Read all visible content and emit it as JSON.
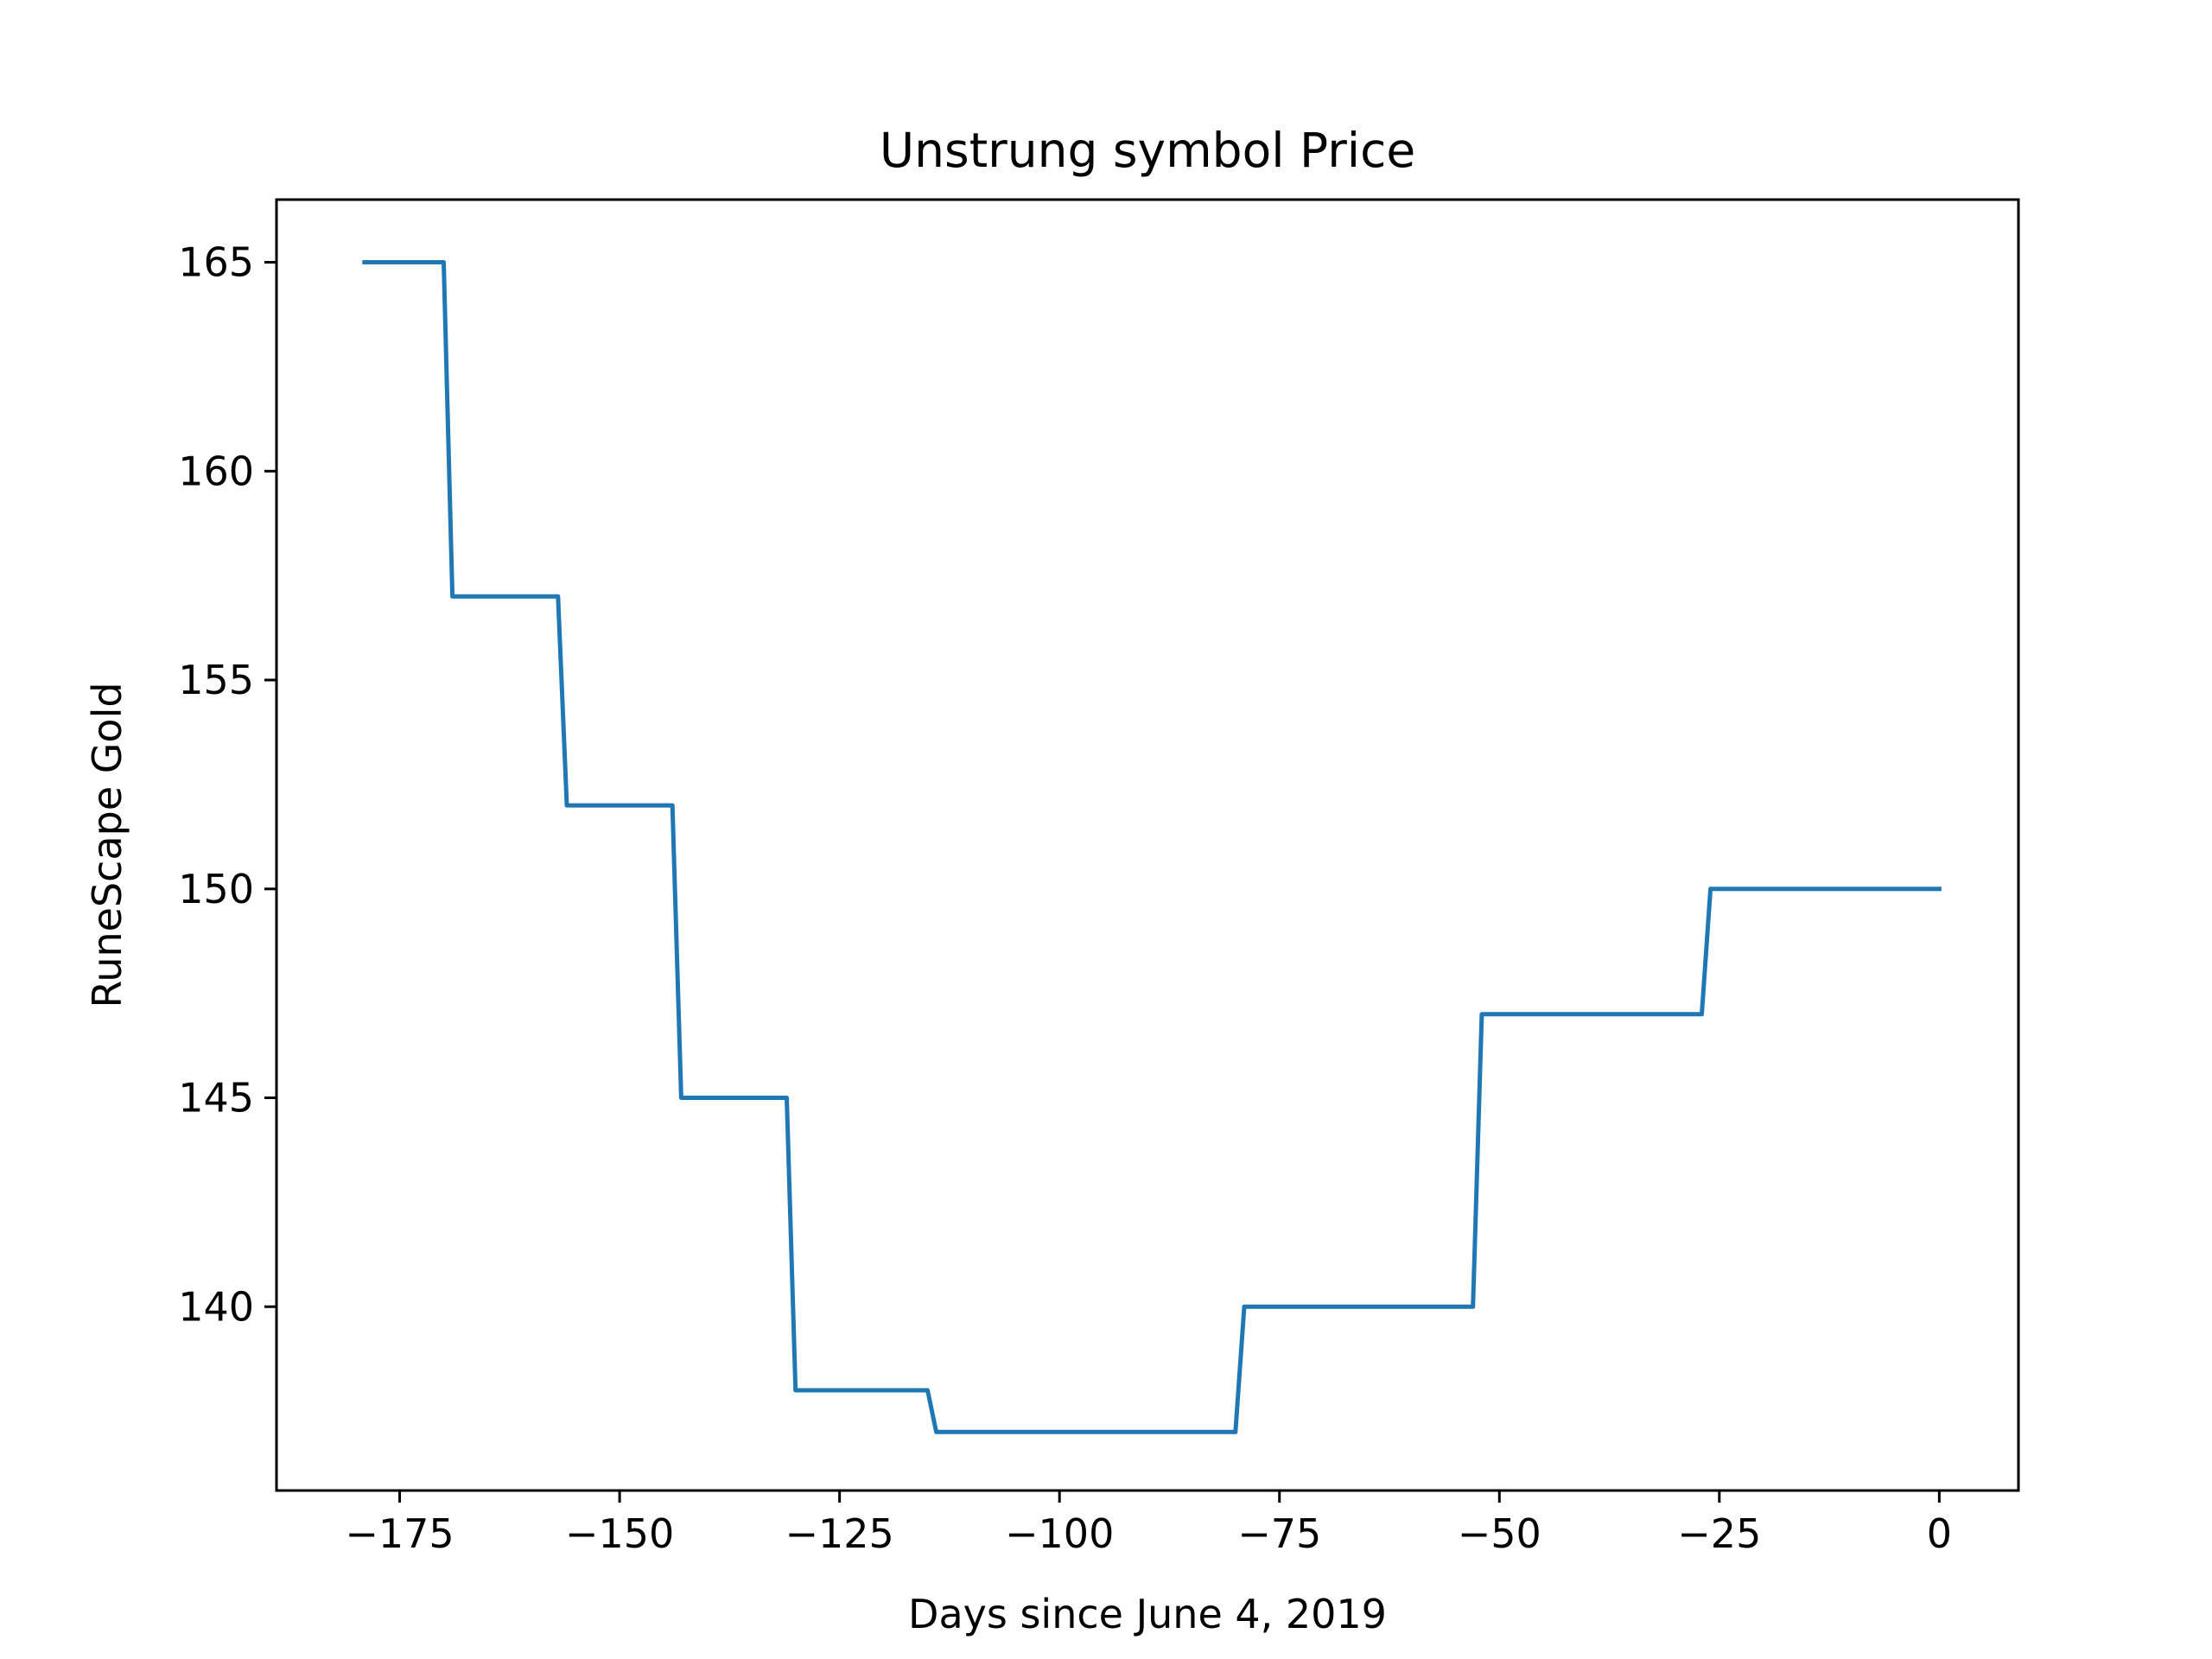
{
  "chart_data": {
    "type": "line",
    "title": "Unstrung symbol Price",
    "xlabel": "Days since June 4, 2019",
    "ylabel": "RuneScape Gold",
    "xlim": [
      -189,
      9
    ],
    "ylim": [
      135.6,
      166.5
    ],
    "x_ticks": [
      -175,
      -150,
      -125,
      -100,
      -75,
      -50,
      -25,
      0
    ],
    "x_tick_labels": [
      "−175",
      "−150",
      "−125",
      "−100",
      "−75",
      "−50",
      "−25",
      "0"
    ],
    "y_ticks": [
      140,
      145,
      150,
      155,
      160,
      165
    ],
    "y_tick_labels": [
      "140",
      "145",
      "150",
      "155",
      "160",
      "165"
    ],
    "grid": false,
    "legend": false,
    "series": [
      {
        "color": "#1f77b4",
        "x": [
          -179,
          -170,
          -169,
          -157,
          -156,
          -144,
          -143,
          -131,
          -130,
          -115,
          -114,
          -80,
          -79,
          -53,
          -52,
          -27,
          -26,
          0
        ],
        "y": [
          165,
          165,
          157,
          157,
          152,
          152,
          145,
          145,
          138,
          138,
          137,
          137,
          140,
          140,
          147,
          147,
          150,
          150
        ]
      }
    ]
  }
}
